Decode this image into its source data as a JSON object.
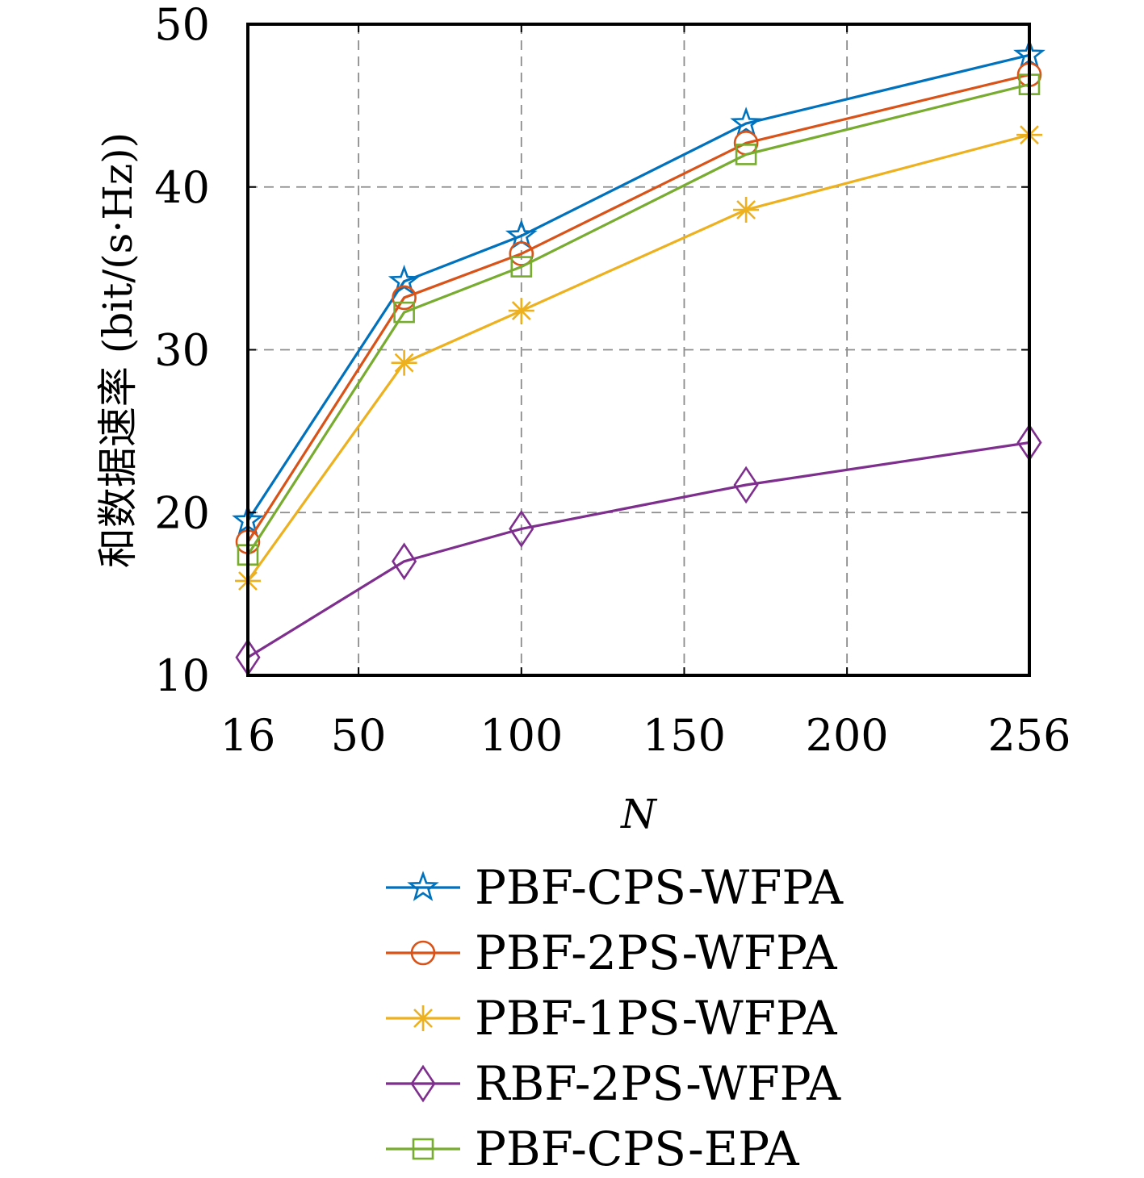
{
  "chart_data": {
    "type": "line",
    "xlabel": "N",
    "ylabel": "和数据速率 (bit/(s·Hz))",
    "xlim": [
      16,
      256
    ],
    "ylim": [
      10,
      50
    ],
    "xticks": [
      16,
      50,
      100,
      150,
      200,
      256
    ],
    "xtick_labels": [
      "16",
      "50",
      "100",
      "150",
      "200",
      "256"
    ],
    "yticks": [
      10,
      20,
      30,
      40,
      50
    ],
    "ytick_labels": [
      "10",
      "20",
      "30",
      "40",
      "50"
    ],
    "grid": true,
    "legend_position": "below",
    "x": [
      16,
      64,
      100,
      169,
      256
    ],
    "series": [
      {
        "name": "PBF-CPS-WFPA",
        "color": "#0072BD",
        "marker": "star",
        "values": [
          19.5,
          34.2,
          37.0,
          43.9,
          48.1
        ]
      },
      {
        "name": "PBF-2PS-WFPA",
        "color": "#D95319",
        "marker": "circle",
        "values": [
          18.2,
          33.2,
          35.9,
          42.7,
          46.9
        ]
      },
      {
        "name": "PBF-1PS-WFPA",
        "color": "#EDB120",
        "marker": "asterisk",
        "values": [
          15.8,
          29.2,
          32.4,
          38.6,
          43.2
        ]
      },
      {
        "name": "RBF-2PS-WFPA",
        "color": "#7E2F8E",
        "marker": "diamond",
        "values": [
          11.1,
          17.0,
          19.0,
          21.7,
          24.3
        ]
      },
      {
        "name": "PBF-CPS-EPA",
        "color": "#77AC30",
        "marker": "square",
        "values": [
          17.4,
          32.3,
          35.1,
          42.0,
          46.3
        ]
      }
    ]
  }
}
